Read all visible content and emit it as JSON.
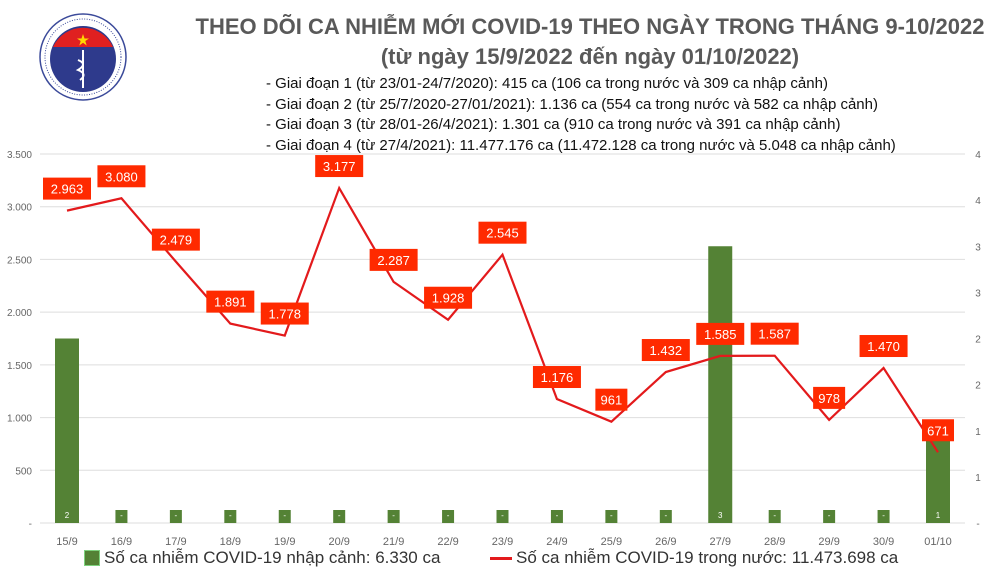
{
  "header": {
    "title": "THEO DÕI CA NHIỄM MỚI COVID-19 THEO NGÀY TRONG THÁNG 9-10/2022",
    "subtitle": "(từ ngày 15/9/2022 đến ngày 01/10/2022)",
    "notes": [
      "- Giai đoạn 1 (từ 23/01-24/7/2020): 415 ca (106 ca trong nước và 309 ca nhập cảnh)",
      "- Giai đoạn 2 (từ 25/7/2020-27/01/2021): 1.136 ca (554 ca trong nước và 582 ca nhập cảnh)",
      "- Giai đoạn 3 (từ 28/01-26/4/2021): 1.301 ca (910 ca trong nước và 391 ca nhập cảnh)",
      "- Giai đoạn 4 (từ 27/4/2021): 11.477.176 ca (11.472.128 ca trong nước và 5.048 ca nhập cảnh)"
    ],
    "logo_text": "BỘ Y TẾ · MINISTRY OF HEALTH"
  },
  "chart_data": {
    "type": "bar+line",
    "categories": [
      "15/9",
      "16/9",
      "17/9",
      "18/9",
      "19/9",
      "20/9",
      "21/9",
      "22/9",
      "23/9",
      "24/9",
      "25/9",
      "26/9",
      "27/9",
      "28/9",
      "29/9",
      "30/9",
      "01/10"
    ],
    "series": [
      {
        "name": "Số ca nhiễm COVID-19 nhập cảnh: 6.330 ca",
        "type": "bar",
        "axis": "right",
        "color": "#548235",
        "values": [
          2,
          0,
          0,
          0,
          0,
          0,
          0,
          0,
          0,
          0,
          0,
          0,
          3,
          0,
          0,
          0,
          1
        ],
        "labels": [
          "2",
          "-",
          "-",
          "-",
          "-",
          "-",
          "-",
          "-",
          "-",
          "-",
          "-",
          "-",
          "3",
          "-",
          "-",
          "-",
          "1"
        ]
      },
      {
        "name": "Số ca nhiễm COVID-19 trong nước: 11.473.698 ca",
        "type": "line",
        "axis": "left",
        "color": "#e31a1c",
        "values": [
          2963,
          3080,
          2479,
          1891,
          1778,
          3177,
          2287,
          1928,
          2545,
          1176,
          961,
          1432,
          1585,
          1587,
          978,
          1470,
          671
        ],
        "labels": [
          "2.963",
          "3.080",
          "2.479",
          "1.891",
          "1.778",
          "3.177",
          "2.287",
          "1.928",
          "2.545",
          "1.176",
          "961",
          "1.432",
          "1.585",
          "1.587",
          "978",
          "1.470",
          "671"
        ]
      }
    ],
    "left_axis": {
      "ylim": [
        0,
        3500
      ],
      "ticks": [
        "-",
        "500",
        "1.000",
        "1.500",
        "2.000",
        "2.500",
        "3.000",
        "3.500"
      ]
    },
    "right_axis": {
      "ylim": [
        0,
        4
      ],
      "ticks": [
        "-",
        "1",
        "1",
        "2",
        "2",
        "3",
        "3",
        "4",
        "4"
      ]
    },
    "grid": true,
    "legend": "bottom"
  }
}
